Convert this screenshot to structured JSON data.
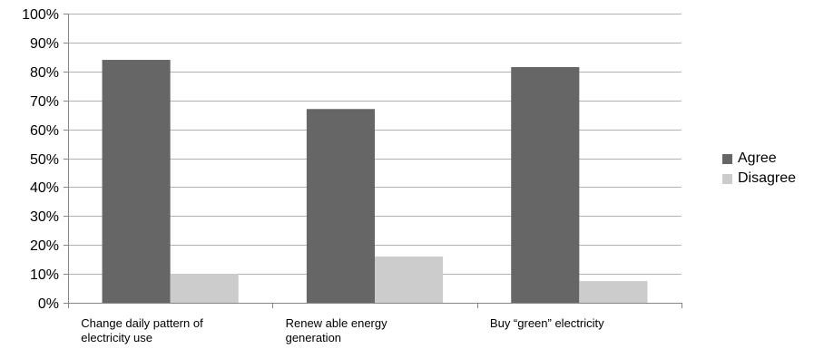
{
  "chart_data": {
    "type": "bar",
    "categories": [
      [
        "Change daily pattern of",
        "electricity use"
      ],
      [
        "Renew able energy",
        "generation"
      ],
      [
        "Buy “green” electricity"
      ]
    ],
    "series": [
      {
        "name": "Agree",
        "values": [
          84,
          67,
          81.5
        ],
        "color": "#666666"
      },
      {
        "name": "Disagree",
        "values": [
          10,
          16,
          7.5
        ],
        "color": "#cccccc"
      }
    ],
    "y_ticks": [
      "0%",
      "10%",
      "20%",
      "30%",
      "40%",
      "50%",
      "60%",
      "70%",
      "80%",
      "90%",
      "100%"
    ],
    "ylim": [
      0,
      100
    ],
    "grid": true,
    "legend_position": "right"
  }
}
